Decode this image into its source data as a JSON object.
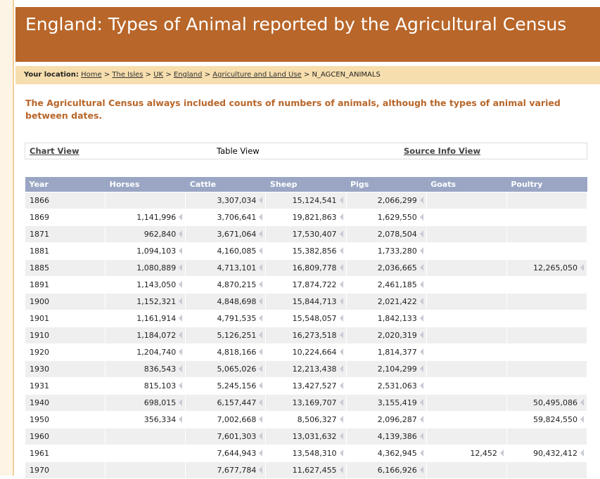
{
  "header": {
    "title": "England: Types of Animal reported by the Agricultural Census"
  },
  "breadcrumb": {
    "label": "Your location:",
    "separator": ">",
    "items": [
      "Home",
      "The Isles",
      "UK",
      "England",
      "Agriculture and Land Use",
      "N_AGCEN_ANIMALS"
    ]
  },
  "intro": "The Agricultural Census always included counts of numbers of animals, although the types of animal varied between dates.",
  "tabs": [
    "Chart View",
    "Table View",
    "Source Info View"
  ],
  "table": {
    "columns": [
      "Year",
      "Horses",
      "Cattle",
      "Sheep",
      "Pigs",
      "Goats",
      "Poultry"
    ],
    "rows": [
      [
        "1866",
        null,
        "3,307,034",
        "15,124,541",
        "2,066,299",
        null,
        null
      ],
      [
        "1869",
        "1,141,996",
        "3,706,641",
        "19,821,863",
        "1,629,550",
        null,
        null
      ],
      [
        "1871",
        "962,840",
        "3,671,064",
        "17,530,407",
        "2,078,504",
        null,
        null
      ],
      [
        "1881",
        "1,094,103",
        "4,160,085",
        "15,382,856",
        "1,733,280",
        null,
        null
      ],
      [
        "1885",
        "1,080,889",
        "4,713,101",
        "16,809,778",
        "2,036,665",
        null,
        "12,265,050"
      ],
      [
        "1891",
        "1,143,050",
        "4,870,215",
        "17,874,722",
        "2,461,185",
        null,
        null
      ],
      [
        "1900",
        "1,152,321",
        "4,848,698",
        "15,844,713",
        "2,021,422",
        null,
        null
      ],
      [
        "1901",
        "1,161,914",
        "4,791,535",
        "15,548,057",
        "1,842,133",
        null,
        null
      ],
      [
        "1910",
        "1,184,072",
        "5,126,251",
        "16,273,518",
        "2,020,319",
        null,
        null
      ],
      [
        "1920",
        "1,204,740",
        "4,818,166",
        "10,224,664",
        "1,814,377",
        null,
        null
      ],
      [
        "1930",
        "836,543",
        "5,065,026",
        "12,213,438",
        "2,104,299",
        null,
        null
      ],
      [
        "1931",
        "815,103",
        "5,245,156",
        "13,427,527",
        "2,531,063",
        null,
        null
      ],
      [
        "1940",
        "698,015",
        "6,157,447",
        "13,169,707",
        "3,155,419",
        null,
        "50,495,086"
      ],
      [
        "1950",
        "356,334",
        "7,002,668",
        "8,506,327",
        "2,096,287",
        null,
        "59,824,550"
      ],
      [
        "1960",
        null,
        "7,601,303",
        "13,031,632",
        "4,139,386",
        null,
        null
      ],
      [
        "1961",
        null,
        "7,644,943",
        "13,548,310",
        "4,362,945",
        "12,452",
        "90,432,412"
      ],
      [
        "1970",
        null,
        "7,677,784",
        "11,627,455",
        "6,166,926",
        null,
        null
      ]
    ]
  }
}
